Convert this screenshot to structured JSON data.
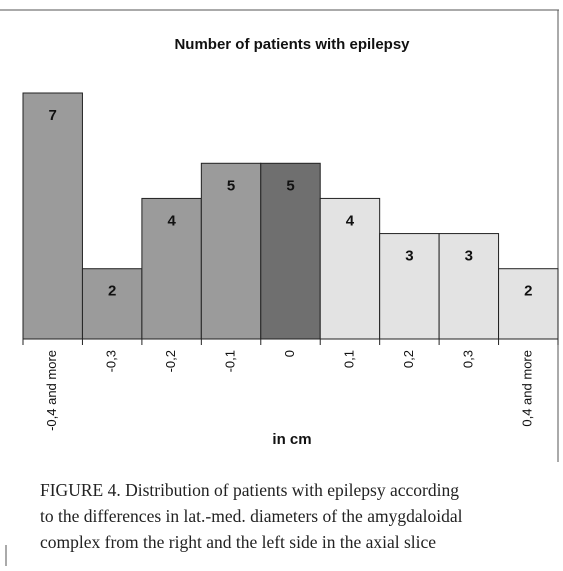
{
  "chart_data": {
    "type": "bar",
    "title": "Number of patients with epilepsy",
    "x_label": "in cm",
    "categories": [
      "-0,4 and more",
      "-0,3",
      "-0,2",
      "-0,1",
      "0",
      "0,1",
      "0,2",
      "0,3",
      "0,4 and more"
    ],
    "values": [
      7,
      2,
      4,
      5,
      5,
      4,
      3,
      3,
      2
    ],
    "colors": [
      "#9b9b9b",
      "#9b9b9b",
      "#9b9b9b",
      "#9b9b9b",
      "#6f6f6f",
      "#e3e3e3",
      "#e3e3e3",
      "#e3e3e3",
      "#e3e3e3"
    ]
  },
  "caption": [
    "FIGURE 4.  Distribution of patients with epilepsy according",
    "to the differences in lat.-med. diameters of the amygdaloidal",
    "complex from the right and the left side in the axial slice"
  ]
}
